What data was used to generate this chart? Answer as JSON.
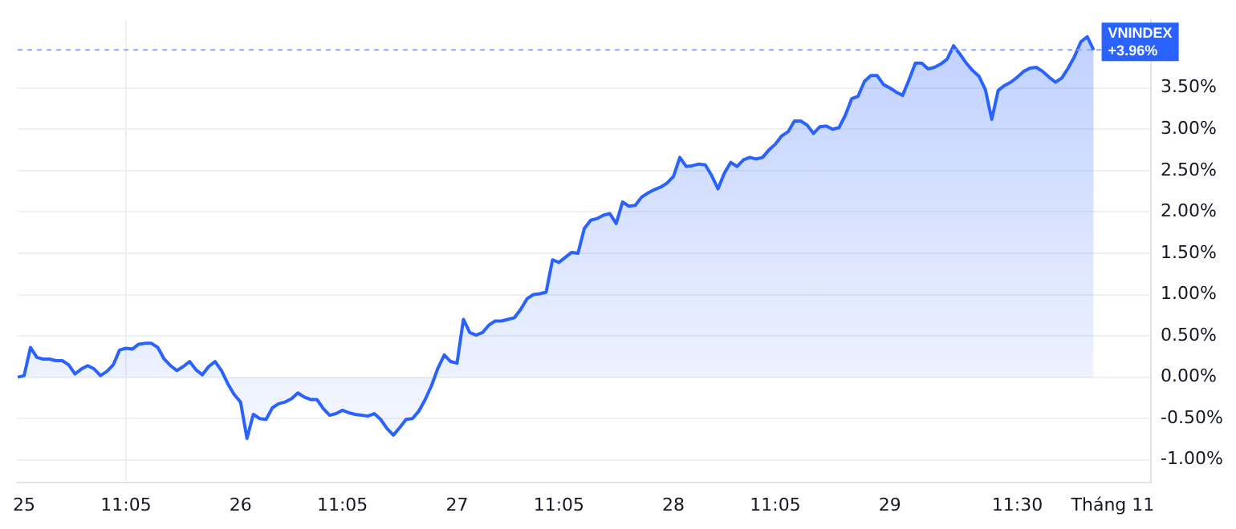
{
  "chart_data": {
    "type": "area",
    "categories": [
      null,
      "25",
      null,
      null,
      null,
      null,
      null,
      null,
      null,
      null,
      null,
      null,
      null,
      null,
      null,
      null,
      null,
      "11:05",
      null,
      null,
      null,
      null,
      null,
      null,
      null,
      null,
      null,
      null,
      null,
      null,
      null,
      null,
      null,
      null,
      null,
      "26",
      null,
      null,
      null,
      null,
      null,
      null,
      null,
      null,
      null,
      null,
      null,
      null,
      null,
      null,
      null,
      "11:05",
      null,
      null,
      null,
      null,
      null,
      null,
      null,
      null,
      null,
      null,
      null,
      null,
      null,
      null,
      null,
      null,
      null,
      "27",
      null,
      null,
      null,
      null,
      null,
      null,
      null,
      null,
      null,
      null,
      null,
      null,
      null,
      null,
      null,
      "11:05",
      null,
      null,
      null,
      null,
      null,
      null,
      null,
      null,
      null,
      null,
      null,
      null,
      null,
      null,
      null,
      null,
      null,
      "28",
      null,
      null,
      null,
      null,
      null,
      null,
      null,
      null,
      null,
      null,
      null,
      null,
      null,
      null,
      null,
      "11:05",
      null,
      null,
      null,
      null,
      null,
      null,
      null,
      null,
      null,
      null,
      null,
      null,
      null,
      null,
      null,
      null,
      null,
      "29",
      null,
      null,
      null,
      null,
      null,
      null,
      null,
      null,
      null,
      null,
      null,
      null,
      null,
      null,
      null,
      null,
      null,
      null,
      null,
      "11:30",
      null,
      null,
      null,
      null,
      null,
      null,
      null,
      null,
      null,
      null,
      null,
      null,
      null,
      null,
      "Tháng 11",
      null,
      null,
      null,
      null,
      null,
      null
    ],
    "series": [
      {
        "name": "VNINDEX",
        "color": "#2962ff",
        "values": [
          0,
          0.02,
          0.36,
          0.24,
          0.22,
          0.22,
          0.2,
          0.2,
          0.15,
          0.04,
          0.1,
          0.14,
          0.1,
          0.02,
          0.07,
          0.15,
          0.33,
          0.35,
          0.34,
          0.4,
          0.41,
          0.41,
          0.36,
          0.22,
          0.14,
          0.08,
          0.13,
          0.19,
          0.09,
          0.03,
          0.13,
          0.19,
          0.08,
          -0.08,
          -0.21,
          -0.3,
          -0.74,
          -0.45,
          -0.5,
          -0.51,
          -0.37,
          -0.32,
          -0.3,
          -0.26,
          -0.19,
          -0.24,
          -0.27,
          -0.27,
          -0.38,
          -0.46,
          -0.44,
          -0.4,
          -0.43,
          -0.45,
          -0.46,
          -0.47,
          -0.44,
          -0.51,
          -0.62,
          -0.7,
          -0.61,
          -0.51,
          -0.5,
          -0.41,
          -0.27,
          -0.1,
          0.11,
          0.27,
          0.19,
          0.17,
          0.7,
          0.54,
          0.51,
          0.54,
          0.63,
          0.68,
          0.68,
          0.7,
          0.72,
          0.82,
          0.95,
          1,
          1.01,
          1.03,
          1.42,
          1.39,
          1.45,
          1.51,
          1.5,
          1.8,
          1.9,
          1.92,
          1.96,
          1.98,
          1.86,
          2.12,
          2.07,
          2.08,
          2.18,
          2.23,
          2.27,
          2.3,
          2.35,
          2.43,
          2.66,
          2.55,
          2.56,
          2.58,
          2.57,
          2.44,
          2.28,
          2.47,
          2.6,
          2.55,
          2.63,
          2.66,
          2.64,
          2.66,
          2.75,
          2.82,
          2.92,
          2.97,
          3.1,
          3.1,
          3.05,
          2.95,
          3.03,
          3.04,
          3,
          3.02,
          3.17,
          3.37,
          3.4,
          3.58,
          3.65,
          3.65,
          3.54,
          3.5,
          3.45,
          3.41,
          3.6,
          3.8,
          3.8,
          3.73,
          3.75,
          3.79,
          3.85,
          4.01,
          3.91,
          3.8,
          3.71,
          3.64,
          3.48,
          3.12,
          3.47,
          3.53,
          3.57,
          3.63,
          3.7,
          3.74,
          3.75,
          3.7,
          3.63,
          3.57,
          3.62,
          3.74,
          3.88,
          4.06,
          4.12,
          3.96,
          null,
          null,
          null,
          null,
          null,
          null,
          null,
          null,
          null
        ],
        "value_labels": [
          null,
          null,
          null,
          null,
          null,
          null,
          null,
          null,
          null,
          null,
          null,
          null,
          null,
          null,
          null,
          null,
          null,
          null,
          null,
          null,
          null,
          null,
          null,
          null,
          null,
          null,
          null,
          null,
          null,
          null,
          null,
          null,
          null,
          null,
          null,
          null,
          null,
          null,
          null,
          null,
          null,
          null,
          null,
          null,
          null,
          null,
          null,
          null,
          null,
          null,
          null,
          null,
          null,
          null,
          null,
          null,
          null,
          null,
          null,
          null,
          null,
          null,
          null,
          null,
          null,
          null,
          null,
          null,
          null,
          null,
          null,
          null,
          null,
          null,
          null,
          null,
          null,
          null,
          null,
          null,
          null,
          null,
          null,
          null,
          null,
          null,
          null,
          null,
          null,
          null,
          null,
          null,
          null,
          null,
          null,
          null,
          null,
          null,
          null,
          null,
          null,
          null,
          null,
          null,
          null,
          null,
          null,
          null,
          null,
          null,
          null,
          null,
          null,
          null,
          null,
          null,
          null,
          null,
          null,
          null,
          null,
          null,
          null,
          null,
          null,
          null,
          null,
          null,
          null,
          null,
          null,
          null,
          null,
          null,
          null,
          null,
          null,
          null,
          null,
          null,
          null,
          null,
          null,
          null,
          null,
          null,
          null,
          null,
          null,
          null,
          null,
          null,
          null,
          null,
          null,
          null,
          null,
          null,
          null,
          null,
          null,
          null,
          null,
          null,
          null,
          null,
          null,
          null,
          null,
          "+3.96%",
          null,
          null,
          null,
          null,
          null,
          null,
          null,
          null,
          null
        ]
      }
    ],
    "ylim": [
      -1.27,
      4.32
    ],
    "yticks": [
      {
        "value": -1,
        "label": "-1.00%"
      },
      {
        "value": -0.5,
        "label": "-0.50%"
      },
      {
        "value": 0,
        "label": "0.00%"
      },
      {
        "value": 0.5,
        "label": "0.50%"
      },
      {
        "value": 1,
        "label": "1.00%"
      },
      {
        "value": 1.5,
        "label": "1.50%"
      },
      {
        "value": 2,
        "label": "2.00%"
      },
      {
        "value": 2.5,
        "label": "2.50%"
      },
      {
        "value": 3,
        "label": "3.00%"
      },
      {
        "value": 3.5,
        "label": "3.50%"
      }
    ],
    "ref_lines": [
      {
        "axis": "y",
        "value": 3.96,
        "label": null,
        "color": "#8fa8f8",
        "line_style": "dashed"
      }
    ],
    "grid": true,
    "legend": false,
    "marker": "none",
    "line_style": "solid"
  }
}
